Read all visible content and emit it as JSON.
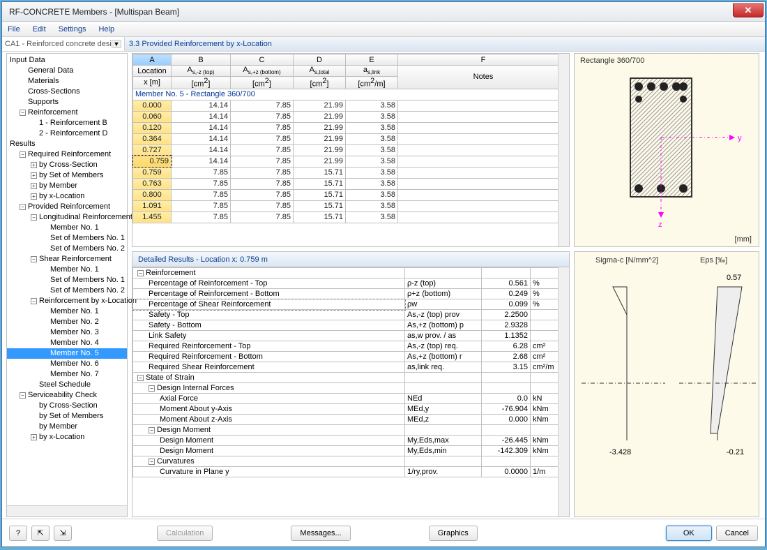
{
  "window": {
    "title": "RF-CONCRETE Members - [Multispan Beam]"
  },
  "menu": {
    "file": "File",
    "edit": "Edit",
    "settings": "Settings",
    "help": "Help"
  },
  "case_dropdown": "CA1 - Reinforced concrete desi",
  "section_title": "3.3 Provided Reinforcement by x-Location",
  "tree": {
    "input_data": "Input Data",
    "general_data": "General Data",
    "materials": "Materials",
    "cross_sections": "Cross-Sections",
    "supports": "Supports",
    "reinforcement": "Reinforcement",
    "r1": "1 - Reinforcement B",
    "r2": "2 - Reinforcement D",
    "results": "Results",
    "required_reinf": "Required Reinforcement",
    "by_cs": "by Cross-Section",
    "by_set": "by Set of Members",
    "by_member": "by Member",
    "by_xloc": "by x-Location",
    "provided_reinf": "Provided Reinforcement",
    "long_reinf": "Longitudinal Reinforcement",
    "m1": "Member No. 1",
    "sm1": "Set of Members No. 1",
    "sm2": "Set of Members No. 2",
    "shear_reinf": "Shear Reinforcement",
    "reinf_by_x": "Reinforcement by x-Location",
    "m2": "Member No. 2",
    "m3": "Member No. 3",
    "m4": "Member No. 4",
    "m5": "Member No. 5",
    "m6": "Member No. 6",
    "m7": "Member No. 7",
    "steel_sched": "Steel Schedule",
    "serv_check": "Serviceability Check"
  },
  "grid": {
    "cols": {
      "A": "A",
      "B": "B",
      "C": "C",
      "D": "D",
      "E": "E",
      "F": "F"
    },
    "hdr": {
      "loc1": "Location",
      "loc2": "x [m]",
      "b1": "A",
      "b1sub": "s,-z (top)",
      "b2": "[cm",
      "b2sup": "2",
      "b2tail": "]",
      "c1": "A",
      "c1sub": "s,+z (bottom)",
      "c2": "[cm",
      "c2sup": "2",
      "c2tail": "]",
      "d1": "A",
      "d1sub": "s,total",
      "d2": "[cm",
      "d2sup": "2",
      "d2tail": "]",
      "e1": "a",
      "e1sub": "s,link",
      "e2": "[cm",
      "e2sup": "2",
      "e2tail": "/m]",
      "f": "Notes"
    },
    "member_hdr": "Member No. 5  -  Rectangle 360/700",
    "rows": [
      {
        "x": "0.000",
        "b": "14.14",
        "c": "7.85",
        "d": "21.99",
        "e": "3.58"
      },
      {
        "x": "0.060",
        "b": "14.14",
        "c": "7.85",
        "d": "21.99",
        "e": "3.58"
      },
      {
        "x": "0.120",
        "b": "14.14",
        "c": "7.85",
        "d": "21.99",
        "e": "3.58"
      },
      {
        "x": "0.364",
        "b": "14.14",
        "c": "7.85",
        "d": "21.99",
        "e": "3.58"
      },
      {
        "x": "0.727",
        "b": "14.14",
        "c": "7.85",
        "d": "21.99",
        "e": "3.58"
      },
      {
        "x": "0.759",
        "b": "14.14",
        "c": "7.85",
        "d": "21.99",
        "e": "3.58",
        "sel": true
      },
      {
        "x": "0.759",
        "b": "7.85",
        "c": "7.85",
        "d": "15.71",
        "e": "3.58"
      },
      {
        "x": "0.763",
        "b": "7.85",
        "c": "7.85",
        "d": "15.71",
        "e": "3.58"
      },
      {
        "x": "0.800",
        "b": "7.85",
        "c": "7.85",
        "d": "15.71",
        "e": "3.58"
      },
      {
        "x": "1.091",
        "b": "7.85",
        "c": "7.85",
        "d": "15.71",
        "e": "3.58"
      },
      {
        "x": "1.455",
        "b": "7.85",
        "c": "7.85",
        "d": "15.71",
        "e": "3.58"
      }
    ]
  },
  "cross": {
    "title": "Rectangle 360/700",
    "unit": "[mm]",
    "y": "y",
    "z": "z"
  },
  "details": {
    "title": "Detailed Results  -  Location x: 0.759 m",
    "rows": [
      {
        "lvl": 0,
        "tgl": "-",
        "name": "Reinforcement"
      },
      {
        "lvl": 1,
        "name": "Percentage of Reinforcement - Top",
        "sym": "ρ-z (top)",
        "val": "0.561",
        "un": "%"
      },
      {
        "lvl": 1,
        "name": "Percentage of Reinforcement - Bottom",
        "sym": "ρ+z (bottom)",
        "val": "0.249",
        "un": "%"
      },
      {
        "lvl": 1,
        "name": "Percentage of Shear Reinforcement",
        "sym": "ρw",
        "val": "0.099",
        "un": "%",
        "hl": true
      },
      {
        "lvl": 1,
        "name": "Safety - Top",
        "sym": "As,-z (top) prov",
        "val": "2.2500",
        "un": ""
      },
      {
        "lvl": 1,
        "name": "Safety - Bottom",
        "sym": "As,+z (bottom) p",
        "val": "2.9328",
        "un": ""
      },
      {
        "lvl": 1,
        "name": "Link Safety",
        "sym": "as,w prov. / as",
        "val": "1.1352",
        "un": ""
      },
      {
        "lvl": 1,
        "name": "Required Reinforcement - Top",
        "sym": "As,-z (top) req.",
        "val": "6.28",
        "un": "cm²"
      },
      {
        "lvl": 1,
        "name": "Required Reinforcement - Bottom",
        "sym": "As,+z (bottom) r",
        "val": "2.68",
        "un": "cm²"
      },
      {
        "lvl": 1,
        "name": "Required Shear Reinforcement",
        "sym": "as,link req.",
        "val": "3.15",
        "un": "cm²/m"
      },
      {
        "lvl": 0,
        "tgl": "-",
        "name": "State of Strain"
      },
      {
        "lvl": 1,
        "tgl": "-",
        "name": "Design Internal Forces"
      },
      {
        "lvl": 2,
        "name": "Axial Force",
        "sym": "NEd",
        "val": "0.0",
        "un": "kN"
      },
      {
        "lvl": 2,
        "name": "Moment About y-Axis",
        "sym": "MEd,y",
        "val": "-76.904",
        "un": "kNm"
      },
      {
        "lvl": 2,
        "name": "Moment About z-Axis",
        "sym": "MEd,z",
        "val": "0.000",
        "un": "kNm"
      },
      {
        "lvl": 1,
        "tgl": "-",
        "name": "Design Moment"
      },
      {
        "lvl": 2,
        "name": "Design Moment",
        "sym": "My,Eds,max",
        "val": "-26.445",
        "un": "kNm"
      },
      {
        "lvl": 2,
        "name": "Design Moment",
        "sym": "My,Eds,min",
        "val": "-142.309",
        "un": "kNm"
      },
      {
        "lvl": 1,
        "tgl": "-",
        "name": "Curvatures"
      },
      {
        "lvl": 2,
        "name": "Curvature in Plane y",
        "sym": "1/ry,prov.",
        "val": "0.0000",
        "un": "1/m"
      }
    ]
  },
  "diag": {
    "sigma": "Sigma-c [N/mm^2]",
    "eps": "Eps [‰]",
    "v_sigma": "-3.428",
    "v_eps_top": "0.57",
    "v_eps_bot": "-0.21"
  },
  "footer": {
    "calc": "Calculation",
    "msg": "Messages...",
    "gfx": "Graphics",
    "ok": "OK",
    "cancel": "Cancel"
  }
}
